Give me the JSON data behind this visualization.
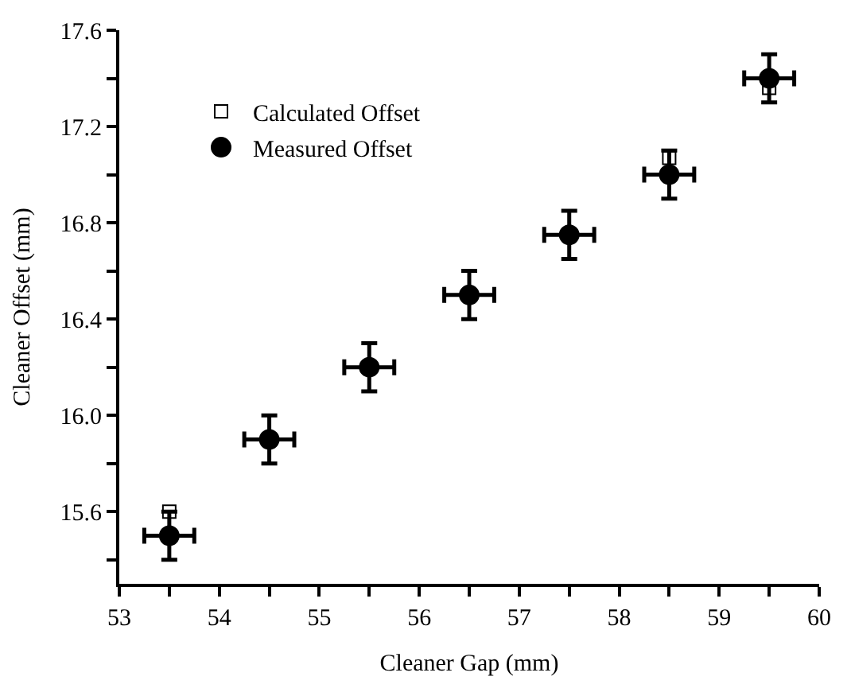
{
  "chart_data": {
    "type": "scatter",
    "xlabel": "Cleaner Gap (mm)",
    "ylabel": "Cleaner Offset (mm)",
    "x": [
      53.5,
      54.5,
      55.5,
      56.5,
      57.5,
      58.5,
      59.5
    ],
    "series": [
      {
        "name": "Calculated Offset",
        "color": "#000000",
        "marker": "square-open",
        "values": [
          15.6,
          null,
          null,
          null,
          null,
          17.07,
          17.36
        ]
      },
      {
        "name": "Measured Offset",
        "color": "#000000",
        "marker": "circle",
        "values": [
          15.5,
          15.9,
          16.2,
          16.5,
          16.75,
          17.0,
          17.4
        ],
        "errors": [
          0.1,
          0.1,
          0.1,
          0.1,
          0.1,
          0.1,
          0.1
        ],
        "xerrors": [
          0.25,
          0.25,
          0.25,
          0.25,
          0.25,
          0.25,
          0.25
        ]
      }
    ],
    "xlim": [
      53,
      60
    ],
    "ylim": [
      15.3,
      17.6
    ],
    "xticks": [
      53,
      {
        "value": 53.5,
        "label": null
      },
      54,
      {
        "value": 54.5,
        "label": null
      },
      55,
      {
        "value": 55.5,
        "label": null
      },
      56,
      {
        "value": 56.5,
        "label": null
      },
      57,
      {
        "value": 57.5,
        "label": null
      },
      58,
      {
        "value": 58.5,
        "label": null
      },
      59,
      {
        "value": 59.5,
        "label": null
      },
      60
    ],
    "yticks": [
      {
        "value": 15.4,
        "label": null
      },
      {
        "value": 15.6,
        "label": "15.6"
      },
      {
        "value": 15.8,
        "label": null
      },
      {
        "value": 16.0,
        "label": "16.0"
      },
      {
        "value": 16.2,
        "label": null
      },
      {
        "value": 16.4,
        "label": "16.4"
      },
      {
        "value": 16.6,
        "label": null
      },
      {
        "value": 16.8,
        "label": "16.8"
      },
      {
        "value": 17.0,
        "label": null
      },
      {
        "value": 17.2,
        "label": "17.2"
      },
      {
        "value": 17.4,
        "label": null
      },
      {
        "value": 17.6,
        "label": "17.6"
      }
    ],
    "legend": "top left"
  }
}
